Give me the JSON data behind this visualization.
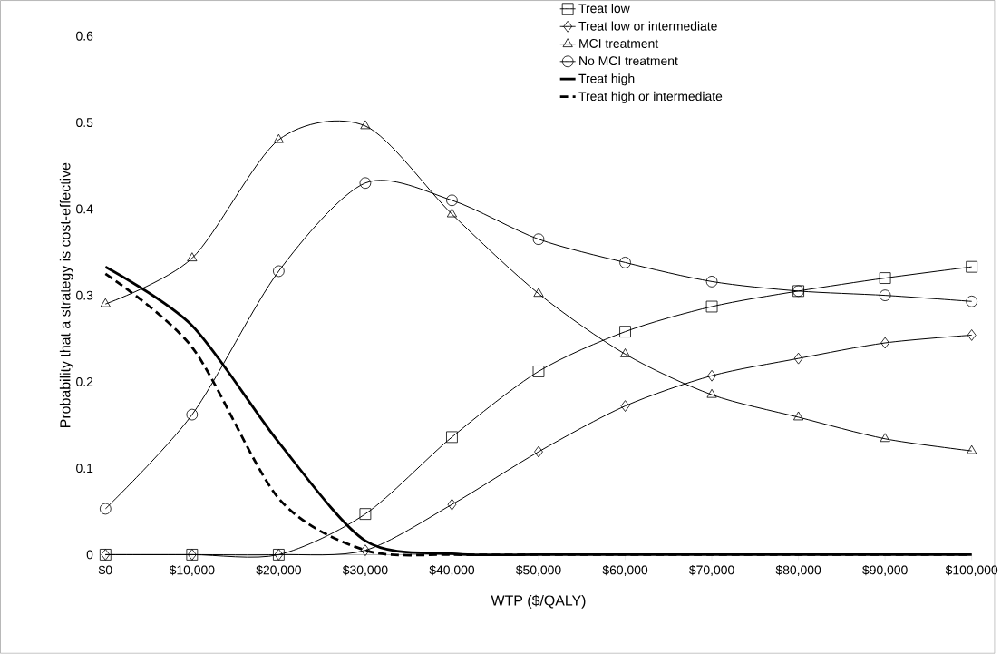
{
  "chart_data": {
    "type": "line",
    "xlabel": "WTP ($/QALY)",
    "ylabel": "Probability that a strategy is cost-effective",
    "x": [
      0,
      10000,
      20000,
      30000,
      40000,
      50000,
      60000,
      70000,
      80000,
      90000,
      100000
    ],
    "xlim": [
      0,
      100000
    ],
    "xticks": [
      {
        "value": 0,
        "label": "$0"
      },
      {
        "value": 10000,
        "label": "$10,000"
      },
      {
        "value": 20000,
        "label": "$20,000"
      },
      {
        "value": 30000,
        "label": "$30,000"
      },
      {
        "value": 40000,
        "label": "$40,000"
      },
      {
        "value": 50000,
        "label": "$50,000"
      },
      {
        "value": 60000,
        "label": "$60,000"
      },
      {
        "value": 70000,
        "label": "$70,000"
      },
      {
        "value": 80000,
        "label": "$80,000"
      },
      {
        "value": 90000,
        "label": "$90,000"
      },
      {
        "value": 100000,
        "label": "$100,000"
      }
    ],
    "ylim": [
      0,
      0.6
    ],
    "yticks": [
      0,
      0.1,
      0.2,
      0.3,
      0.4,
      0.5,
      0.6
    ],
    "grid": false,
    "legend": "top right",
    "series": [
      {
        "name": "Treat low",
        "color": "#000000",
        "marker": "square",
        "line_style": "solid",
        "values": [
          0,
          0,
          0,
          0.047,
          0.136,
          0.212,
          0.258,
          0.287,
          0.305,
          0.32,
          0.333
        ]
      },
      {
        "name": "Treat low or intermediate",
        "color": "#000000",
        "marker": "diamond",
        "line_style": "solid",
        "values": [
          0,
          0,
          0,
          0.005,
          0.058,
          0.119,
          0.172,
          0.207,
          0.227,
          0.245,
          0.254
        ]
      },
      {
        "name": "MCI treatment",
        "color": "#000000",
        "marker": "triangle",
        "line_style": "solid",
        "values": [
          0.29,
          0.343,
          0.48,
          0.496,
          0.394,
          0.302,
          0.232,
          0.185,
          0.159,
          0.134,
          0.12
        ]
      },
      {
        "name": "No MCI treatment",
        "color": "#000000",
        "marker": "circle",
        "line_style": "solid",
        "values": [
          0.053,
          0.162,
          0.328,
          0.43,
          0.41,
          0.365,
          0.338,
          0.316,
          0.305,
          0.3,
          0.293
        ]
      },
      {
        "name": "Treat high",
        "color": "#000000",
        "marker": "none",
        "line_style": "solid",
        "values": [
          0.333,
          0.265,
          0.13,
          0.016,
          0.001,
          0,
          0,
          0,
          0,
          0,
          0
        ]
      },
      {
        "name": "Treat high or intermediate",
        "color": "#000000",
        "marker": "none",
        "line_style": "dashed",
        "values": [
          0.325,
          0.24,
          0.065,
          0.005,
          0,
          0,
          0,
          0,
          0,
          0,
          0
        ]
      }
    ]
  }
}
